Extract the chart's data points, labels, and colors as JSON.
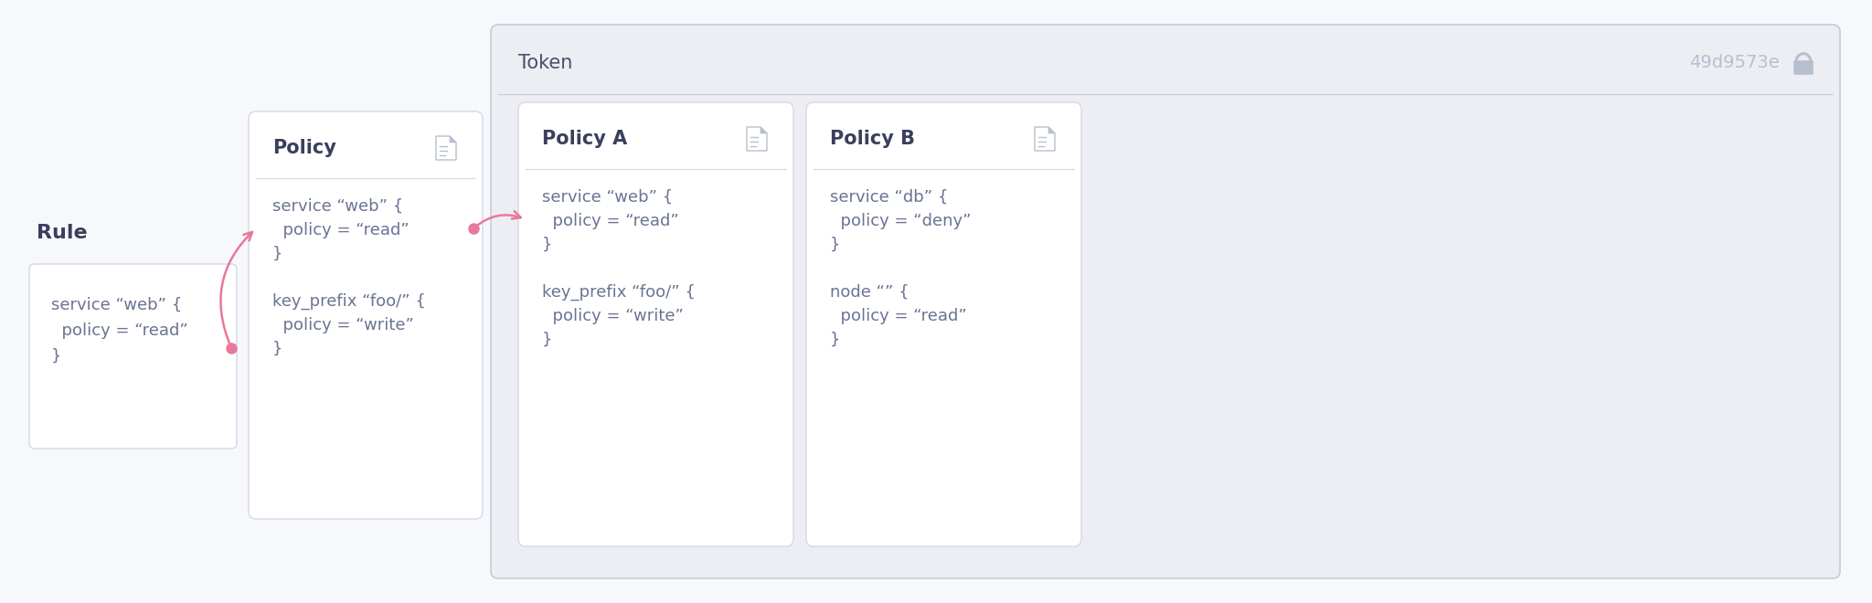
{
  "bg_color": "#f7f8fb",
  "white": "#ffffff",
  "card_border": "#d4d8e8",
  "token_bg": "#eceef4",
  "token_border": "#c8ccd8",
  "header_text_color": "#4a5068",
  "code_text_color": "#6b7394",
  "title_color": "#3a3f5c",
  "arrow_color": "#e8799a",
  "icon_color": "#b8bfce",
  "lock_color": "#b8bfce",
  "token_id_color": "#b8bfce",
  "rule_label": "Rule",
  "rule_code_lines": [
    "service “web” {",
    "  policy = “read”",
    "}"
  ],
  "policy_label": "Policy",
  "policy_code_lines": [
    "service “web” {",
    "  policy = “read”",
    "}",
    "",
    "key_prefix “foo/” {",
    "  policy = “write”",
    "}"
  ],
  "token_label": "Token",
  "token_id": "49d9573e",
  "policy_a_label": "Policy A",
  "policy_a_code_lines": [
    "service “web” {",
    "  policy = “read”",
    "}",
    "",
    "key_prefix “foo/” {",
    "  policy = “write”",
    "}"
  ],
  "policy_b_label": "Policy B",
  "policy_b_code_lines": [
    "service “db” {",
    "  policy = “deny”",
    "}",
    "",
    "node “” {",
    "  policy = “read”",
    "}"
  ]
}
